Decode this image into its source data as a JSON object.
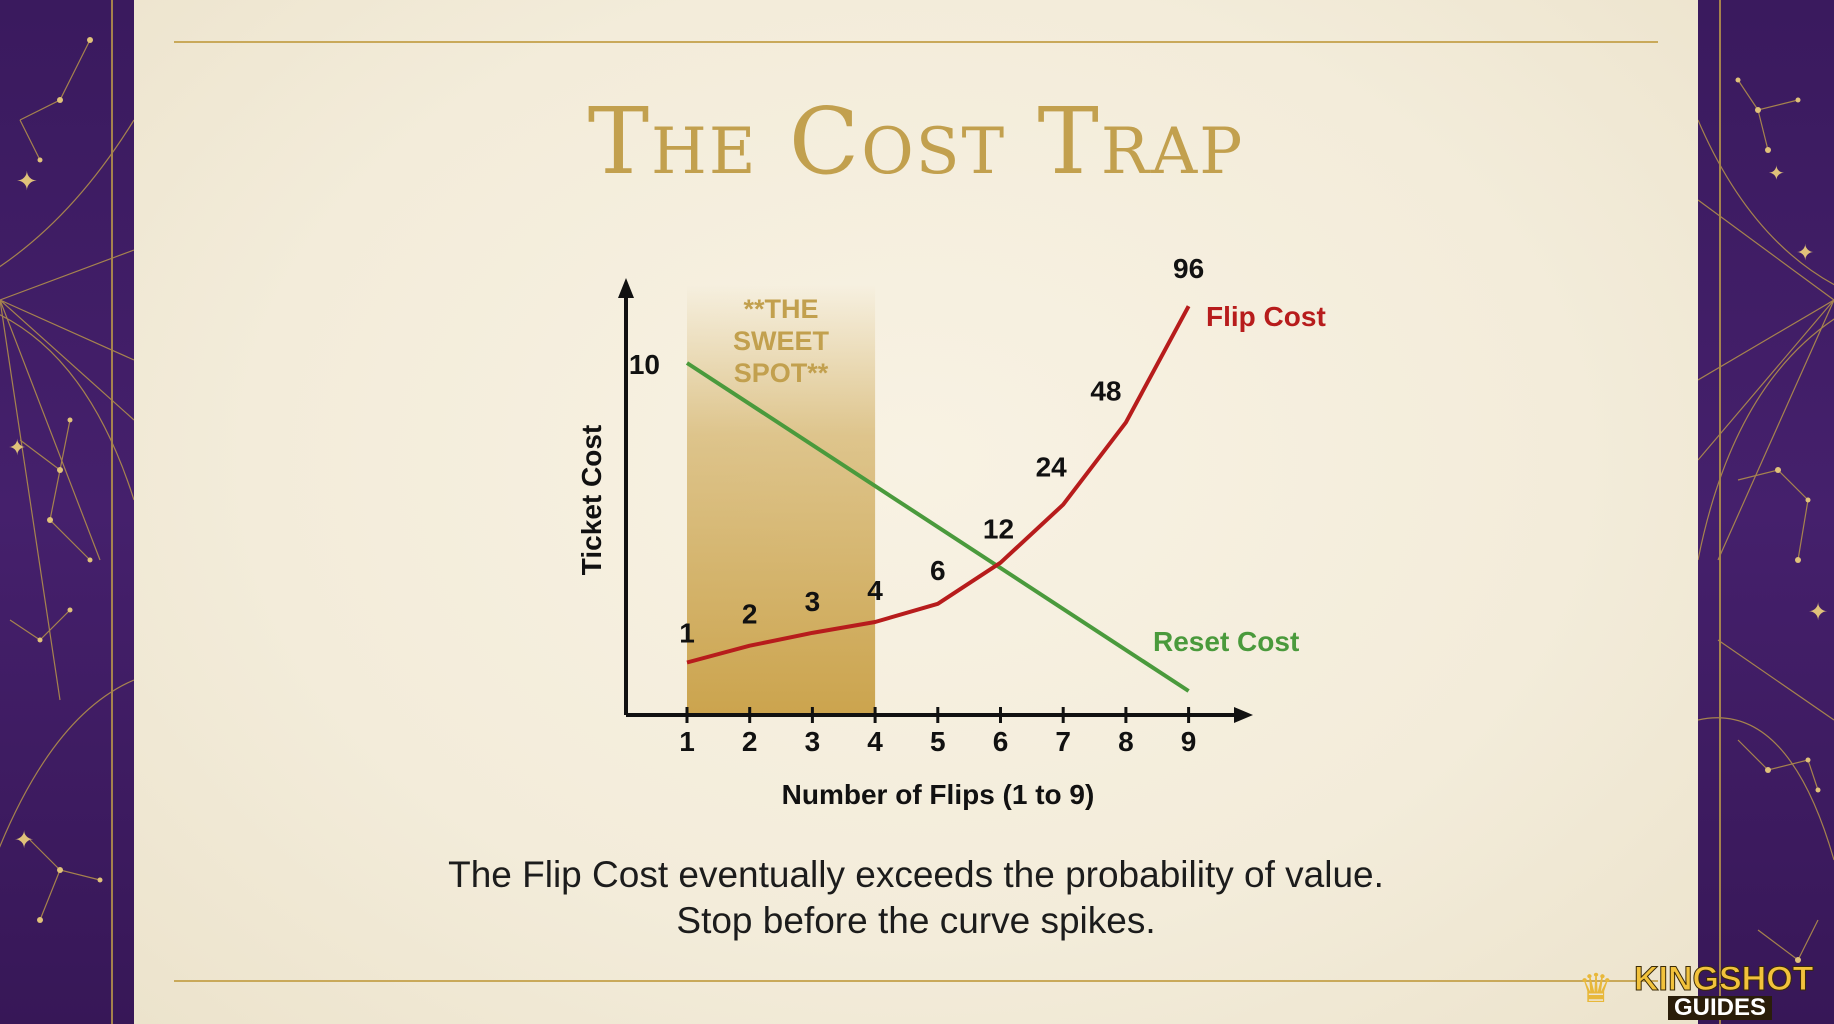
{
  "title": "The Cost Trap",
  "caption_line1": "The Flip Cost eventually exceeds the probability of value.",
  "caption_line2": "Stop before the curve spikes.",
  "logo": {
    "line1": "KINGSHOT",
    "line2": "GUIDES"
  },
  "colors": {
    "flip": "#b71c1c",
    "reset": "#4a9a3c",
    "gold": "#c2a04e",
    "band": "#c9a046"
  },
  "chart_data": {
    "type": "line",
    "x": [
      1,
      2,
      3,
      4,
      5,
      6,
      7,
      8,
      9
    ],
    "xlabel": "Number of Flips (1 to 9)",
    "ylabel": "Ticket Cost",
    "highlight": {
      "label": "**THE SWEET SPOT**",
      "x_from": 1,
      "x_to": 4
    },
    "series": [
      {
        "name": "Flip Cost",
        "values": [
          1,
          2,
          3,
          4,
          6,
          12,
          24,
          48,
          96
        ],
        "labels": [
          "1",
          "2",
          "3",
          "4",
          "6",
          "12",
          "24",
          "48",
          "96"
        ]
      },
      {
        "name": "Reset Cost",
        "points": [
          [
            1,
            10
          ],
          [
            9,
            0
          ]
        ],
        "labels": [
          "10"
        ]
      }
    ]
  }
}
